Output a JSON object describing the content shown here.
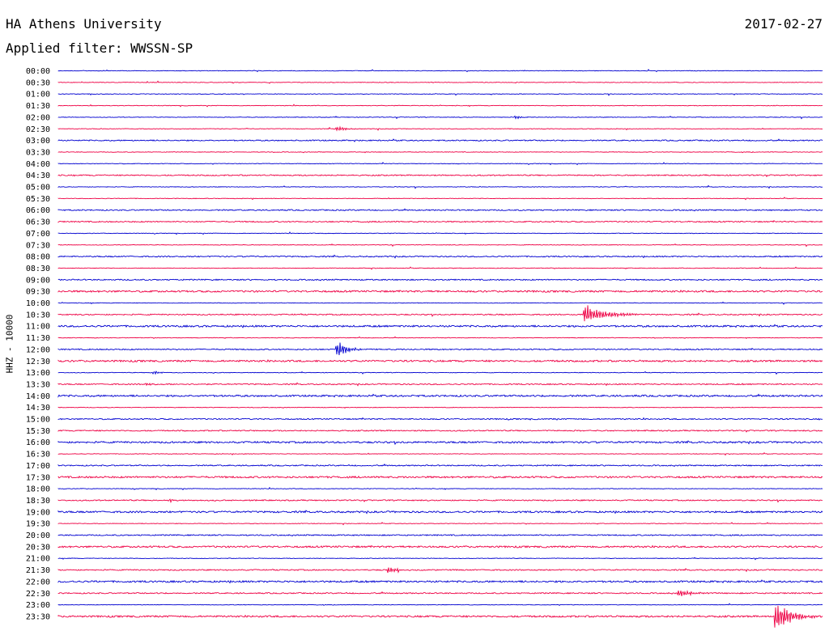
{
  "header": {
    "station": "HA Athens University",
    "date": "2017-02-27",
    "filter": "Applied filter: WWSSN-SP"
  },
  "chart_data": {
    "type": "line",
    "title": "HA Athens University",
    "ylabel": "HHZ - 10000",
    "colors": {
      "even_row": "#0000d0",
      "odd_row": "#ee0044"
    },
    "rows": [
      "00:00",
      "00:30",
      "01:00",
      "01:30",
      "02:00",
      "02:30",
      "03:00",
      "03:30",
      "04:00",
      "04:30",
      "05:00",
      "05:30",
      "06:00",
      "06:30",
      "07:00",
      "07:30",
      "08:00",
      "08:30",
      "09:00",
      "09:30",
      "10:00",
      "10:30",
      "11:00",
      "11:30",
      "12:00",
      "12:30",
      "13:00",
      "13:30",
      "14:00",
      "14:30",
      "15:00",
      "15:30",
      "16:00",
      "16:30",
      "17:00",
      "17:30",
      "18:00",
      "18:30",
      "19:00",
      "19:30",
      "20:00",
      "20:30",
      "21:00",
      "21:30",
      "22:00",
      "22:30",
      "23:00",
      "23:30"
    ],
    "noise_level": [
      1,
      1,
      1,
      1,
      1,
      1,
      2,
      1,
      1,
      2,
      1,
      1,
      2,
      2,
      1,
      1,
      2,
      1,
      2,
      3,
      1,
      2,
      3,
      1,
      2,
      3,
      1,
      2,
      3,
      1,
      2,
      2,
      3,
      1,
      2,
      3,
      1,
      2,
      3,
      1,
      2,
      3,
      1,
      2,
      3,
      2,
      1,
      3
    ],
    "events": [
      {
        "row": 5,
        "minute": 11.0,
        "amplitude": 3,
        "duration": 0.8
      },
      {
        "row": 4,
        "minute": 18.0,
        "amplitude": 2,
        "duration": 0.6
      },
      {
        "row": 21,
        "minute": 20.7,
        "amplitude": 12,
        "duration": 2.0
      },
      {
        "row": 24,
        "minute": 11.0,
        "amplitude": 10,
        "duration": 0.9
      },
      {
        "row": 26,
        "minute": 3.8,
        "amplitude": 2,
        "duration": 0.5
      },
      {
        "row": 27,
        "minute": 3.5,
        "amplitude": 2,
        "duration": 0.5
      },
      {
        "row": 37,
        "minute": 4.4,
        "amplitude": 2,
        "duration": 0.5
      },
      {
        "row": 43,
        "minute": 13.0,
        "amplitude": 4,
        "duration": 0.8
      },
      {
        "row": 45,
        "minute": 24.4,
        "amplitude": 4,
        "duration": 1.6
      },
      {
        "row": 47,
        "minute": 28.2,
        "amplitude": 18,
        "duration": 1.5
      }
    ]
  }
}
